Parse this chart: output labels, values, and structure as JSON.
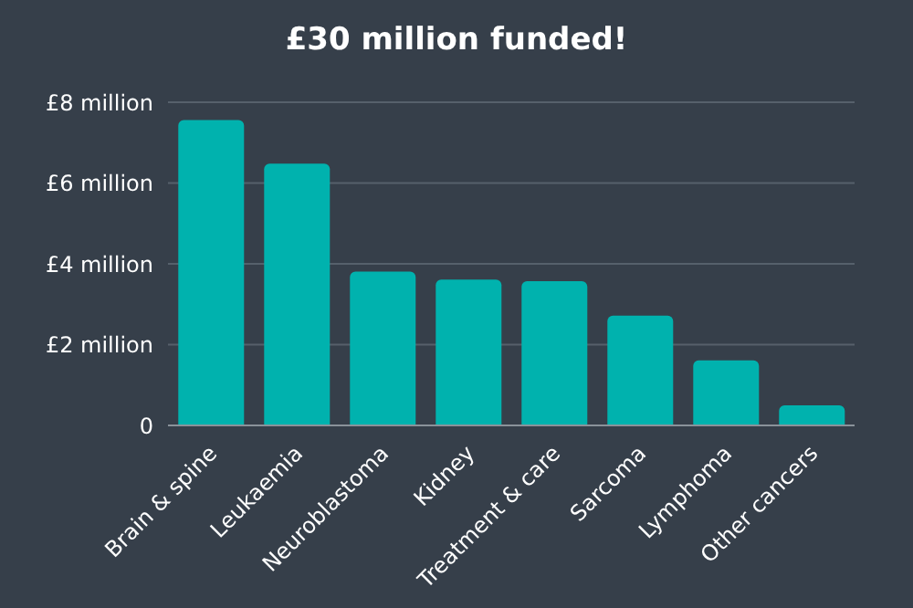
{
  "chart_data": {
    "type": "bar",
    "title": "£30 million funded!",
    "categories": [
      "Brain & spine",
      "Leukaemia",
      "Neuroblastoma",
      "Kidney",
      "Treatment & care",
      "Sarcoma",
      "Lymphoma",
      "Other cancers"
    ],
    "values": [
      7.56,
      6.48,
      3.81,
      3.61,
      3.57,
      2.72,
      1.61,
      0.5
    ],
    "color": "#00b2ae",
    "ylim": [
      0,
      8
    ],
    "yticks": [
      0,
      {
        "value": 2,
        "label": "£2 million"
      },
      {
        "value": 4,
        "label": "£4 million"
      },
      {
        "value": 6,
        "label": "£6 million"
      },
      {
        "value": 8,
        "label": "£8 million"
      }
    ],
    "grid": "y"
  }
}
